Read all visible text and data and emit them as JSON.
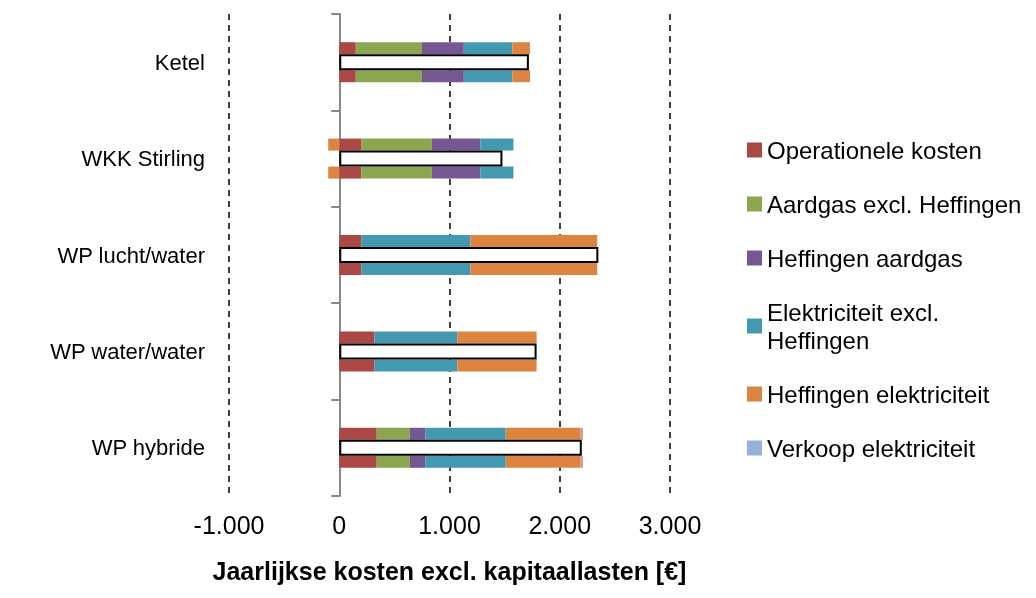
{
  "chart_data": {
    "type": "bar",
    "orientation": "horizontal",
    "xlabel": "Jaarlijkse kosten excl. kapitaallasten [€]",
    "categories": [
      "Ketel",
      "WKK Stirling",
      "WP lucht/water",
      "WP water/water",
      "WP hybride"
    ],
    "series": [
      {
        "name": "Operationele kosten",
        "color": "#ab4744",
        "values": [
          150,
          200,
          200,
          320,
          340
        ],
        "base": [
          0,
          0,
          0,
          0,
          0
        ]
      },
      {
        "name": "Aardgas excl. Heffingen",
        "color": "#8ca650",
        "values": [
          600,
          640,
          null,
          null,
          300
        ],
        "base": [
          150,
          200,
          null,
          null,
          340
        ]
      },
      {
        "name": "Heffingen aardgas",
        "color": "#735891",
        "values": [
          380,
          440,
          null,
          null,
          140
        ],
        "base": [
          750,
          840,
          null,
          null,
          640
        ]
      },
      {
        "name": "Elektriciteit excl. Heffingen",
        "color": "#4299b0",
        "values": [
          440,
          300,
          990,
          750,
          730
        ],
        "base": [
          1130,
          1280,
          200,
          320,
          780
        ]
      },
      {
        "name": "Heffingen elektriciteit",
        "color": "#dd8540",
        "values": [
          160,
          -100,
          1150,
          720,
          680
        ],
        "base": [
          1570,
          0,
          1190,
          1070,
          1510
        ]
      },
      {
        "name": "Verkoop elektriciteit",
        "color": "#95b3d7",
        "values": [
          null,
          null,
          null,
          null,
          null
        ],
        "base": [
          null,
          null,
          null,
          null,
          null
        ]
      },
      {
        "color": "#d99694",
        "values": [
          null,
          null,
          null,
          null,
          20
        ],
        "base": [
          null,
          null,
          null,
          null,
          2190
        ]
      },
      {
        "color": "#ffffff",
        "values": [
          1720,
          1480,
          2350,
          1790,
          2200
        ]
      },
      {
        "color": "#ab4744",
        "values": [
          150,
          200,
          200,
          320,
          340
        ],
        "base": [
          0,
          0,
          0,
          0,
          0
        ]
      },
      {
        "color": "#8ca650",
        "values": [
          600,
          640,
          null,
          null,
          300
        ],
        "base": [
          150,
          200,
          null,
          null,
          340
        ]
      },
      {
        "color": "#735891",
        "values": [
          380,
          440,
          null,
          null,
          140
        ],
        "base": [
          750,
          840,
          null,
          null,
          640
        ]
      },
      {
        "color": "#4299b0",
        "values": [
          440,
          300,
          990,
          750,
          730
        ],
        "base": [
          1130,
          1280,
          200,
          320,
          780
        ]
      },
      {
        "color": "#dd8540",
        "values": [
          160,
          -100,
          1150,
          720,
          680
        ],
        "base": [
          1570,
          0,
          1190,
          1070,
          1510
        ]
      },
      {
        "color": "#d99694",
        "values": [
          null,
          null,
          null,
          null,
          20
        ],
        "base": [
          null,
          null,
          null,
          null,
          2190
        ]
      }
    ],
    "xlim": [
      -1000,
      3000
    ],
    "xticks": [
      {
        "value": -1000,
        "label": "-1.000"
      },
      0,
      {
        "value": 1000,
        "label": "1.000"
      },
      {
        "value": 2000,
        "label": "2.000"
      },
      {
        "value": 3000,
        "label": "3.000"
      }
    ],
    "grid": "x",
    "legend": "right"
  }
}
